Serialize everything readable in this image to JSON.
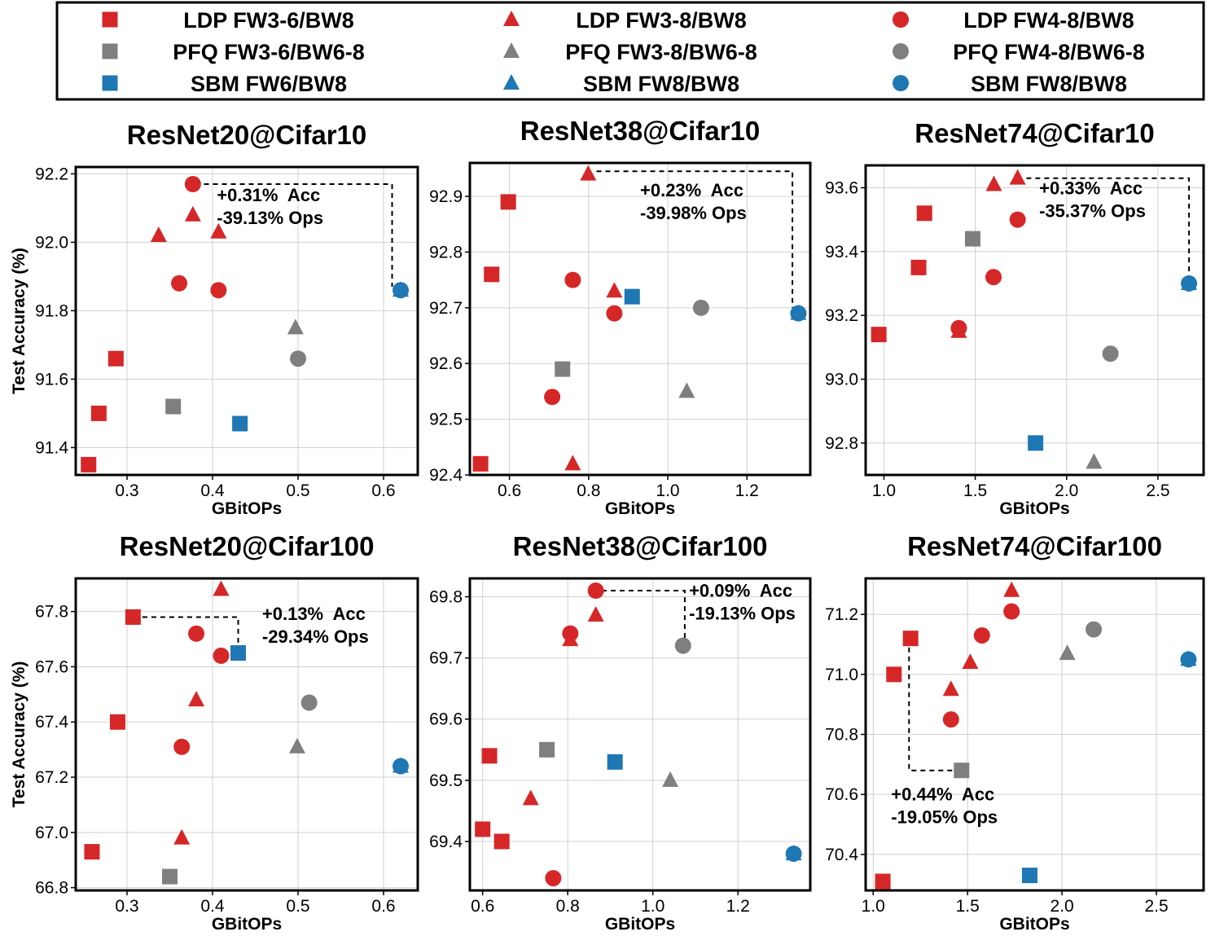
{
  "colors": {
    "LDP": "#d62728",
    "PFQ": "#7f7f7f",
    "SBM": "#1f77b4"
  },
  "legend": [
    {
      "label": "LDP FW3-6/BW8",
      "marker": "square",
      "group": "LDP"
    },
    {
      "label": "LDP FW3-8/BW8",
      "marker": "triangle",
      "group": "LDP"
    },
    {
      "label": "LDP FW4-8/BW8",
      "marker": "circle",
      "group": "LDP"
    },
    {
      "label": "PFQ FW3-6/BW6-8",
      "marker": "square",
      "group": "PFQ"
    },
    {
      "label": "PFQ FW3-8/BW6-8",
      "marker": "triangle",
      "group": "PFQ"
    },
    {
      "label": "PFQ FW4-8/BW6-8",
      "marker": "circle",
      "group": "PFQ"
    },
    {
      "label": "SBM FW6/BW8",
      "marker": "square",
      "group": "SBM"
    },
    {
      "label": "SBM FW8/BW8",
      "marker": "triangle",
      "group": "SBM"
    },
    {
      "label": "SBM FW8/BW8",
      "marker": "circle",
      "group": "SBM"
    }
  ],
  "chart_data": [
    {
      "type": "scatter",
      "title": "ResNet20@Cifar10",
      "xlabel": "GBitOPs",
      "ylabel": "Test Accuracy (%)",
      "xlim": [
        0.24,
        0.64
      ],
      "ylim": [
        91.32,
        92.22
      ],
      "xticks": [
        "0.3",
        "0.4",
        "0.5",
        "0.6"
      ],
      "yticks": [
        "91.4",
        "91.6",
        "91.8",
        "92.0",
        "92.2"
      ],
      "grid": true,
      "annotation": {
        "lines": [
          "+0.31%  Acc",
          "-39.13% Ops"
        ],
        "x": 0.405,
        "y": 92.12
      },
      "connector": [
        [
          0.39,
          92.17
        ],
        [
          0.61,
          92.17
        ],
        [
          0.61,
          91.87
        ]
      ],
      "points": [
        {
          "x": 0.255,
          "y": 91.35,
          "marker": "square",
          "group": "LDP"
        },
        {
          "x": 0.267,
          "y": 91.5,
          "marker": "square",
          "group": "LDP"
        },
        {
          "x": 0.287,
          "y": 91.66,
          "marker": "square",
          "group": "LDP"
        },
        {
          "x": 0.337,
          "y": 92.02,
          "marker": "triangle",
          "group": "LDP"
        },
        {
          "x": 0.377,
          "y": 92.08,
          "marker": "triangle",
          "group": "LDP"
        },
        {
          "x": 0.407,
          "y": 92.03,
          "marker": "triangle",
          "group": "LDP"
        },
        {
          "x": 0.377,
          "y": 92.17,
          "marker": "circle",
          "group": "LDP"
        },
        {
          "x": 0.361,
          "y": 91.88,
          "marker": "circle",
          "group": "LDP"
        },
        {
          "x": 0.407,
          "y": 91.86,
          "marker": "circle",
          "group": "LDP"
        },
        {
          "x": 0.354,
          "y": 91.52,
          "marker": "square",
          "group": "PFQ"
        },
        {
          "x": 0.497,
          "y": 91.75,
          "marker": "triangle",
          "group": "PFQ"
        },
        {
          "x": 0.5,
          "y": 91.66,
          "marker": "circle",
          "group": "PFQ"
        },
        {
          "x": 0.432,
          "y": 91.47,
          "marker": "square",
          "group": "SBM"
        },
        {
          "x": 0.62,
          "y": 91.86,
          "marker": "triangle",
          "group": "SBM"
        },
        {
          "x": 0.62,
          "y": 91.86,
          "marker": "circle",
          "group": "SBM"
        }
      ]
    },
    {
      "type": "scatter",
      "title": "ResNet38@Cifar10",
      "xlabel": "GBitOPs",
      "ylabel": "",
      "xlim": [
        0.5,
        1.36
      ],
      "ylim": [
        92.4,
        92.96
      ],
      "xticks": [
        "0.6",
        "0.8",
        "1.0",
        "1.2"
      ],
      "yticks": [
        "92.4",
        "92.5",
        "92.6",
        "92.7",
        "92.8",
        "92.9"
      ],
      "grid": true,
      "annotation": {
        "lines": [
          "+0.23%  Acc",
          "-39.98% Ops"
        ],
        "x": 0.93,
        "y": 92.9
      },
      "connector": [
        [
          0.82,
          92.945
        ],
        [
          1.315,
          92.945
        ],
        [
          1.315,
          92.7
        ]
      ],
      "points": [
        {
          "x": 0.527,
          "y": 92.42,
          "marker": "square",
          "group": "LDP"
        },
        {
          "x": 0.555,
          "y": 92.76,
          "marker": "square",
          "group": "LDP"
        },
        {
          "x": 0.597,
          "y": 92.89,
          "marker": "square",
          "group": "LDP"
        },
        {
          "x": 0.799,
          "y": 92.94,
          "marker": "triangle",
          "group": "LDP"
        },
        {
          "x": 0.865,
          "y": 92.73,
          "marker": "triangle",
          "group": "LDP"
        },
        {
          "x": 0.76,
          "y": 92.42,
          "marker": "triangle",
          "group": "LDP"
        },
        {
          "x": 0.76,
          "y": 92.75,
          "marker": "circle",
          "group": "LDP"
        },
        {
          "x": 0.865,
          "y": 92.69,
          "marker": "circle",
          "group": "LDP"
        },
        {
          "x": 0.708,
          "y": 92.54,
          "marker": "circle",
          "group": "LDP"
        },
        {
          "x": 0.734,
          "y": 92.59,
          "marker": "square",
          "group": "PFQ"
        },
        {
          "x": 1.048,
          "y": 92.55,
          "marker": "triangle",
          "group": "PFQ"
        },
        {
          "x": 1.084,
          "y": 92.7,
          "marker": "circle",
          "group": "PFQ"
        },
        {
          "x": 0.91,
          "y": 92.72,
          "marker": "square",
          "group": "SBM"
        },
        {
          "x": 1.33,
          "y": 92.69,
          "marker": "triangle",
          "group": "SBM"
        },
        {
          "x": 1.33,
          "y": 92.69,
          "marker": "circle",
          "group": "SBM"
        }
      ]
    },
    {
      "type": "scatter",
      "title": "ResNet74@Cifar10",
      "xlabel": "GBitOPs",
      "ylabel": "",
      "xlim": [
        0.9,
        2.75
      ],
      "ylim": [
        92.7,
        93.67
      ],
      "xticks": [
        "1.0",
        "1.5",
        "2.0",
        "2.5"
      ],
      "yticks": [
        "92.8",
        "93.0",
        "93.2",
        "93.4",
        "93.6"
      ],
      "grid": true,
      "annotation": {
        "lines": [
          "+0.33%  Acc",
          "-35.37% Ops"
        ],
        "x": 1.85,
        "y": 93.58
      },
      "connector": [
        [
          1.78,
          93.63
        ],
        [
          2.67,
          93.63
        ],
        [
          2.67,
          93.32
        ]
      ],
      "points": [
        {
          "x": 0.972,
          "y": 93.14,
          "marker": "square",
          "group": "LDP"
        },
        {
          "x": 1.19,
          "y": 93.35,
          "marker": "square",
          "group": "LDP"
        },
        {
          "x": 1.222,
          "y": 93.52,
          "marker": "square",
          "group": "LDP"
        },
        {
          "x": 1.41,
          "y": 93.15,
          "marker": "triangle",
          "group": "LDP"
        },
        {
          "x": 1.602,
          "y": 93.61,
          "marker": "triangle",
          "group": "LDP"
        },
        {
          "x": 1.732,
          "y": 93.63,
          "marker": "triangle",
          "group": "LDP"
        },
        {
          "x": 1.41,
          "y": 93.16,
          "marker": "circle",
          "group": "LDP"
        },
        {
          "x": 1.6,
          "y": 93.32,
          "marker": "circle",
          "group": "LDP"
        },
        {
          "x": 1.732,
          "y": 93.5,
          "marker": "circle",
          "group": "LDP"
        },
        {
          "x": 1.486,
          "y": 93.44,
          "marker": "square",
          "group": "PFQ"
        },
        {
          "x": 2.15,
          "y": 92.74,
          "marker": "triangle",
          "group": "PFQ"
        },
        {
          "x": 2.24,
          "y": 93.08,
          "marker": "circle",
          "group": "PFQ"
        },
        {
          "x": 1.83,
          "y": 92.8,
          "marker": "square",
          "group": "SBM"
        },
        {
          "x": 2.67,
          "y": 93.3,
          "marker": "triangle",
          "group": "SBM"
        },
        {
          "x": 2.67,
          "y": 93.3,
          "marker": "circle",
          "group": "SBM"
        }
      ]
    },
    {
      "type": "scatter",
      "title": "ResNet20@Cifar100",
      "xlabel": "GBitOPs",
      "ylabel": "Test Accuracy (%)",
      "xlim": [
        0.24,
        0.64
      ],
      "ylim": [
        66.79,
        67.92
      ],
      "xticks": [
        "0.3",
        "0.4",
        "0.5",
        "0.6"
      ],
      "yticks": [
        "66.8",
        "67.0",
        "67.2",
        "67.4",
        "67.6",
        "67.8"
      ],
      "grid": true,
      "annotation": {
        "lines": [
          "+0.13%  Acc",
          "-29.34% Ops"
        ],
        "x": 0.458,
        "y": 67.77
      },
      "connector": [
        [
          0.318,
          67.78
        ],
        [
          0.43,
          67.78
        ],
        [
          0.43,
          67.67
        ]
      ],
      "points": [
        {
          "x": 0.259,
          "y": 66.93,
          "marker": "square",
          "group": "LDP"
        },
        {
          "x": 0.289,
          "y": 67.4,
          "marker": "square",
          "group": "LDP"
        },
        {
          "x": 0.307,
          "y": 67.78,
          "marker": "square",
          "group": "LDP"
        },
        {
          "x": 0.364,
          "y": 66.98,
          "marker": "triangle",
          "group": "LDP"
        },
        {
          "x": 0.381,
          "y": 67.48,
          "marker": "triangle",
          "group": "LDP"
        },
        {
          "x": 0.41,
          "y": 67.88,
          "marker": "triangle",
          "group": "LDP"
        },
        {
          "x": 0.364,
          "y": 67.31,
          "marker": "circle",
          "group": "LDP"
        },
        {
          "x": 0.381,
          "y": 67.72,
          "marker": "circle",
          "group": "LDP"
        },
        {
          "x": 0.41,
          "y": 67.64,
          "marker": "circle",
          "group": "LDP"
        },
        {
          "x": 0.35,
          "y": 66.84,
          "marker": "square",
          "group": "PFQ"
        },
        {
          "x": 0.499,
          "y": 67.31,
          "marker": "triangle",
          "group": "PFQ"
        },
        {
          "x": 0.513,
          "y": 67.47,
          "marker": "circle",
          "group": "PFQ"
        },
        {
          "x": 0.43,
          "y": 67.65,
          "marker": "square",
          "group": "SBM"
        },
        {
          "x": 0.62,
          "y": 67.24,
          "marker": "triangle",
          "group": "SBM"
        },
        {
          "x": 0.62,
          "y": 67.24,
          "marker": "circle",
          "group": "SBM"
        }
      ]
    },
    {
      "type": "scatter",
      "title": "ResNet38@Cifar100",
      "xlabel": "GBitOPs",
      "ylabel": "",
      "xlim": [
        0.57,
        1.37
      ],
      "ylim": [
        69.32,
        69.83
      ],
      "xticks": [
        "0.6",
        "0.8",
        "1.0",
        "1.2"
      ],
      "yticks": [
        "69.4",
        "69.5",
        "69.6",
        "69.7",
        "69.8"
      ],
      "grid": true,
      "annotation": {
        "lines": [
          "+0.09%  Acc",
          "-19.13% Ops"
        ],
        "x": 1.085,
        "y": 69.8
      },
      "connector": [
        [
          0.88,
          69.81
        ],
        [
          1.075,
          69.81
        ],
        [
          1.075,
          69.73
        ]
      ],
      "points": [
        {
          "x": 0.6,
          "y": 69.42,
          "marker": "square",
          "group": "LDP"
        },
        {
          "x": 0.616,
          "y": 69.54,
          "marker": "square",
          "group": "LDP"
        },
        {
          "x": 0.645,
          "y": 69.4,
          "marker": "square",
          "group": "LDP"
        },
        {
          "x": 0.713,
          "y": 69.47,
          "marker": "triangle",
          "group": "LDP"
        },
        {
          "x": 0.806,
          "y": 69.73,
          "marker": "triangle",
          "group": "LDP"
        },
        {
          "x": 0.866,
          "y": 69.77,
          "marker": "triangle",
          "group": "LDP"
        },
        {
          "x": 0.766,
          "y": 69.34,
          "marker": "circle",
          "group": "LDP"
        },
        {
          "x": 0.806,
          "y": 69.74,
          "marker": "circle",
          "group": "LDP"
        },
        {
          "x": 0.866,
          "y": 69.81,
          "marker": "circle",
          "group": "LDP"
        },
        {
          "x": 0.751,
          "y": 69.55,
          "marker": "square",
          "group": "PFQ"
        },
        {
          "x": 1.041,
          "y": 69.5,
          "marker": "triangle",
          "group": "PFQ"
        },
        {
          "x": 1.071,
          "y": 69.72,
          "marker": "circle",
          "group": "PFQ"
        },
        {
          "x": 0.911,
          "y": 69.53,
          "marker": "square",
          "group": "SBM"
        },
        {
          "x": 1.331,
          "y": 69.38,
          "marker": "triangle",
          "group": "SBM"
        },
        {
          "x": 1.331,
          "y": 69.38,
          "marker": "circle",
          "group": "SBM"
        }
      ]
    },
    {
      "type": "scatter",
      "title": "ResNet74@Cifar100",
      "xlabel": "GBitOPs",
      "ylabel": "",
      "xlim": [
        0.96,
        2.75
      ],
      "ylim": [
        70.28,
        71.32
      ],
      "xticks": [
        "1.0",
        "1.5",
        "2.0",
        "2.5"
      ],
      "yticks": [
        "70.4",
        "70.6",
        "70.8",
        "71.0",
        "71.2"
      ],
      "grid": true,
      "annotation": {
        "lines": [
          "+0.44%  Acc",
          "-19.05% Ops"
        ],
        "x": 1.095,
        "y": 70.58
      },
      "connector": [
        [
          1.19,
          71.09
        ],
        [
          1.19,
          70.68
        ],
        [
          1.43,
          70.68
        ]
      ],
      "points": [
        {
          "x": 1.051,
          "y": 70.31,
          "marker": "square",
          "group": "LDP"
        },
        {
          "x": 1.11,
          "y": 71.0,
          "marker": "square",
          "group": "LDP"
        },
        {
          "x": 1.198,
          "y": 71.12,
          "marker": "square",
          "group": "LDP"
        },
        {
          "x": 1.412,
          "y": 70.95,
          "marker": "triangle",
          "group": "LDP"
        },
        {
          "x": 1.514,
          "y": 71.04,
          "marker": "triangle",
          "group": "LDP"
        },
        {
          "x": 1.733,
          "y": 71.28,
          "marker": "triangle",
          "group": "LDP"
        },
        {
          "x": 1.412,
          "y": 70.85,
          "marker": "circle",
          "group": "LDP"
        },
        {
          "x": 1.576,
          "y": 71.13,
          "marker": "circle",
          "group": "LDP"
        },
        {
          "x": 1.733,
          "y": 71.21,
          "marker": "circle",
          "group": "LDP"
        },
        {
          "x": 1.468,
          "y": 70.68,
          "marker": "square",
          "group": "PFQ"
        },
        {
          "x": 2.028,
          "y": 71.07,
          "marker": "triangle",
          "group": "PFQ"
        },
        {
          "x": 2.168,
          "y": 71.15,
          "marker": "circle",
          "group": "PFQ"
        },
        {
          "x": 1.829,
          "y": 70.33,
          "marker": "square",
          "group": "SBM"
        },
        {
          "x": 2.67,
          "y": 71.05,
          "marker": "triangle",
          "group": "SBM"
        },
        {
          "x": 2.67,
          "y": 71.05,
          "marker": "circle",
          "group": "SBM"
        }
      ]
    }
  ]
}
